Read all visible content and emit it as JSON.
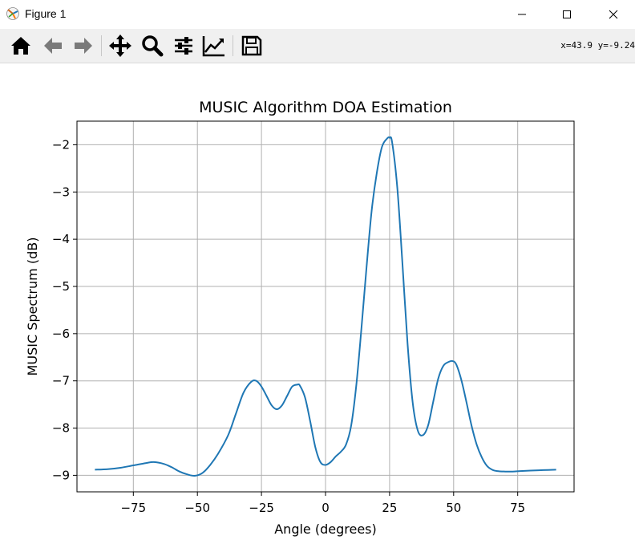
{
  "window": {
    "title": "Figure 1"
  },
  "toolbar": {
    "buttons": [
      "home-icon",
      "back-arrow-icon",
      "forward-arrow-icon",
      "pan-icon",
      "zoom-icon",
      "subplots-icon",
      "axes-edit-icon",
      "save-icon"
    ],
    "coords": "x=43.9 y=-9.24"
  },
  "chart_data": {
    "type": "line",
    "title": "MUSIC Algorithm DOA Estimation",
    "xlabel": "Angle (degrees)",
    "ylabel": "MUSIC Spectrum (dB)",
    "xlim": [
      -97,
      97
    ],
    "ylim": [
      -9.35,
      -1.5
    ],
    "xticks": [
      -75,
      -50,
      -25,
      0,
      25,
      50,
      75
    ],
    "xtick_labels": [
      "−75",
      "−50",
      "−25",
      "0",
      "25",
      "50",
      "75"
    ],
    "yticks": [
      -2,
      -3,
      -4,
      -5,
      -6,
      -7,
      -8,
      -9
    ],
    "ytick_labels": [
      "−2",
      "−3",
      "−4",
      "−5",
      "−6",
      "−7",
      "−8",
      "−9"
    ],
    "grid": true,
    "line_color": "#1f77b4",
    "series": [
      {
        "x": [
          -90,
          -85,
          -80,
          -75,
          -70,
          -67,
          -63,
          -60,
          -57,
          -54,
          -51,
          -48,
          -45,
          -42,
          -38,
          -35,
          -32,
          -29,
          -27,
          -25,
          -23,
          -21,
          -19,
          -17,
          -15,
          -13,
          -11,
          -10,
          -8,
          -6,
          -4,
          -2,
          0,
          2,
          4,
          6,
          8,
          10,
          12,
          14,
          16,
          18,
          20,
          22,
          24,
          25,
          26,
          28,
          30,
          32,
          34,
          36,
          38,
          40,
          42,
          44,
          46,
          48,
          49.5,
          51,
          53,
          55,
          57,
          59,
          61,
          63,
          65,
          67,
          70,
          73,
          76,
          80,
          85,
          90
        ],
        "y": [
          -8.88,
          -8.87,
          -8.84,
          -8.79,
          -8.74,
          -8.72,
          -8.76,
          -8.83,
          -8.92,
          -8.98,
          -9.01,
          -8.95,
          -8.78,
          -8.55,
          -8.15,
          -7.7,
          -7.25,
          -7.02,
          -7.0,
          -7.12,
          -7.32,
          -7.52,
          -7.6,
          -7.52,
          -7.32,
          -7.12,
          -7.08,
          -7.1,
          -7.35,
          -7.85,
          -8.4,
          -8.72,
          -8.78,
          -8.72,
          -8.6,
          -8.5,
          -8.35,
          -7.95,
          -7.1,
          -5.9,
          -4.6,
          -3.4,
          -2.6,
          -2.05,
          -1.87,
          -1.85,
          -1.95,
          -2.9,
          -4.5,
          -6.2,
          -7.45,
          -8.05,
          -8.15,
          -7.95,
          -7.45,
          -6.95,
          -6.68,
          -6.6,
          -6.58,
          -6.65,
          -6.98,
          -7.45,
          -7.95,
          -8.35,
          -8.62,
          -8.8,
          -8.88,
          -8.91,
          -8.92,
          -8.92,
          -8.91,
          -8.9,
          -8.89,
          -8.88
        ]
      }
    ]
  }
}
